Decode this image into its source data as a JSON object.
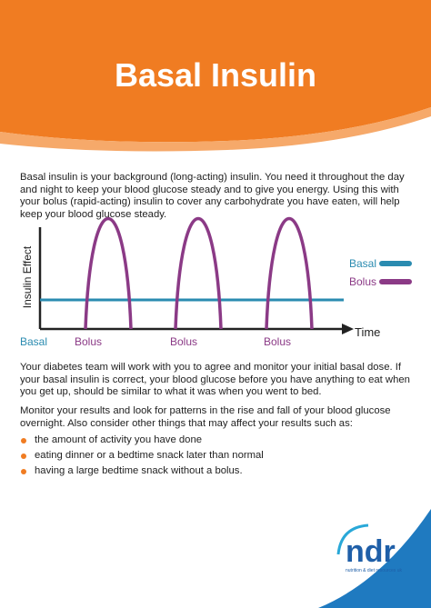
{
  "header": {
    "title": "Basal Insulin"
  },
  "intro": "Basal insulin is your background (long-acting) insulin.  You need it throughout the day and night to keep your blood glucose steady and to give you energy.  Using this with your bolus (rapid-acting) insulin to cover any carbohydrate you have eaten, will help keep your blood glucose steady.",
  "diagram": {
    "y_label": "Insulin Effect",
    "x_label": "Time",
    "legend": [
      "Basal",
      "Bolus"
    ],
    "basal_label": "Basal",
    "bolus_labels": [
      "Bolus",
      "Bolus",
      "Bolus"
    ]
  },
  "paragraphs": [
    "Your diabetes team will work with you to agree and monitor your initial basal dose.  If your basal insulin is correct, your blood glucose before you have anything to eat when you get up, should be similar to what it was when you went to bed.",
    "Monitor your results and look for patterns in the rise and fall of your blood glucose overnight.  Also consider other things that may affect your results such as:"
  ],
  "bullets": [
    "the amount of activity you have done",
    "eating dinner or a bedtime snack later than normal",
    "having a large bedtime snack without a bolus."
  ],
  "logo": {
    "name": "ndr",
    "tagline": "nutrition & diet resources uk"
  }
}
